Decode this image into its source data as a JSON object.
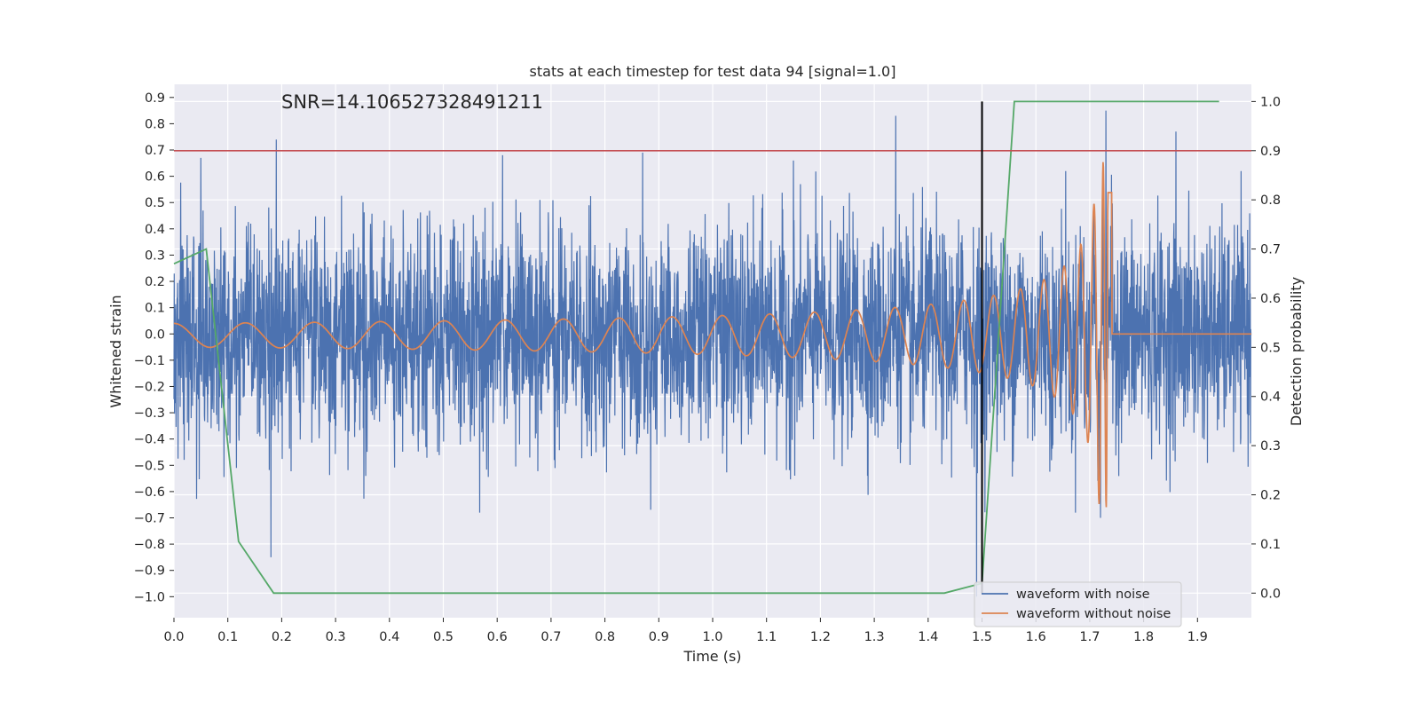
{
  "chart_data": {
    "type": "line",
    "title": "stats at each timestep for test data 94 [signal=1.0]",
    "xlabel": "Time (s)",
    "ylabel_left": "Whitened strain",
    "ylabel_right": "Detection probability",
    "annotation": "SNR=14.106527328491211",
    "xlim": [
      0,
      2.0
    ],
    "ylim_left": [
      -1.08,
      0.95
    ],
    "ylim_right": [
      -0.05,
      1.035
    ],
    "x_ticks": [
      0.0,
      0.1,
      0.2,
      0.3,
      0.4,
      0.5,
      0.6,
      0.7,
      0.8,
      0.9,
      1.0,
      1.1,
      1.2,
      1.3,
      1.4,
      1.5,
      1.6,
      1.7,
      1.8,
      1.9
    ],
    "x_tick_labels": [
      "0.0",
      "0.1",
      "0.2",
      "0.3",
      "0.4",
      "0.5",
      "0.6",
      "0.7",
      "0.8",
      "0.9",
      "1.0",
      "1.1",
      "1.2",
      "1.3",
      "1.4",
      "1.5",
      "1.6",
      "1.7",
      "1.8",
      "1.9"
    ],
    "y_left_ticks": [
      -1.0,
      -0.9,
      -0.8,
      -0.7,
      -0.6,
      -0.5,
      -0.4,
      -0.3,
      -0.2,
      -0.1,
      0.0,
      0.1,
      0.2,
      0.3,
      0.4,
      0.5,
      0.6,
      0.7,
      0.8,
      0.9
    ],
    "y_left_tick_labels": [
      "−1.0",
      "−0.9",
      "−0.8",
      "−0.7",
      "−0.6",
      "−0.5",
      "−0.4",
      "−0.3",
      "−0.2",
      "−0.1",
      "0.0",
      "0.1",
      "0.2",
      "0.3",
      "0.4",
      "0.5",
      "0.6",
      "0.7",
      "0.8",
      "0.9"
    ],
    "y_right_ticks": [
      0.0,
      0.1,
      0.2,
      0.3,
      0.4,
      0.5,
      0.6,
      0.7,
      0.8,
      0.9,
      1.0
    ],
    "y_right_tick_labels": [
      "0.0",
      "0.1",
      "0.2",
      "0.3",
      "0.4",
      "0.5",
      "0.6",
      "0.7",
      "0.8",
      "0.9",
      "1.0"
    ],
    "grid": true,
    "legend_placement": "lower-right",
    "colors": {
      "background": "#eaeaf2",
      "grid": "#ffffff",
      "noise": "#4c72b0",
      "clean": "#dd8452",
      "probability": "#55a868",
      "threshold": "#c44e52",
      "marker": "#000000"
    },
    "series": [
      {
        "name": "waveform with noise",
        "axis": "left",
        "description_values": "dense random strain samples, roughly ±0.4 typical, spikes to ±0.8",
        "peaks": [
          {
            "x": 0.05,
            "y": 0.67
          },
          {
            "x": 0.19,
            "y": 0.74
          },
          {
            "x": 0.18,
            "y": -0.85
          },
          {
            "x": 0.61,
            "y": 0.68
          },
          {
            "x": 0.87,
            "y": 0.69
          },
          {
            "x": 1.15,
            "y": 0.66
          },
          {
            "x": 1.34,
            "y": 0.83
          },
          {
            "x": 1.49,
            "y": -1.0
          },
          {
            "x": 1.73,
            "y": 0.85
          },
          {
            "x": 1.86,
            "y": 0.77
          },
          {
            "x": 1.72,
            "y": -0.7
          }
        ]
      },
      {
        "name": "waveform without noise",
        "axis": "left",
        "description_values": "chirp: amplitude ~0.05 at t=0 growing to ~0.65 at merger t≈1.73 s, then flat 0",
        "merger_time": 1.735,
        "peak_amplitude": 0.66
      },
      {
        "axis": "right",
        "x": [
          0.0,
          0.06,
          0.12,
          0.185,
          0.3,
          0.5,
          1.0,
          1.43,
          1.5,
          1.56,
          1.62,
          1.94
        ],
        "y": [
          0.67,
          0.7,
          0.105,
          0.0,
          0.0,
          0.0,
          0.0,
          0.0,
          0.02,
          1.0,
          1.0,
          1.0
        ]
      }
    ],
    "threshold_line_right": 0.9,
    "vertical_marker_x": 1.5,
    "legend": [
      "waveform with noise",
      "waveform without noise"
    ]
  }
}
